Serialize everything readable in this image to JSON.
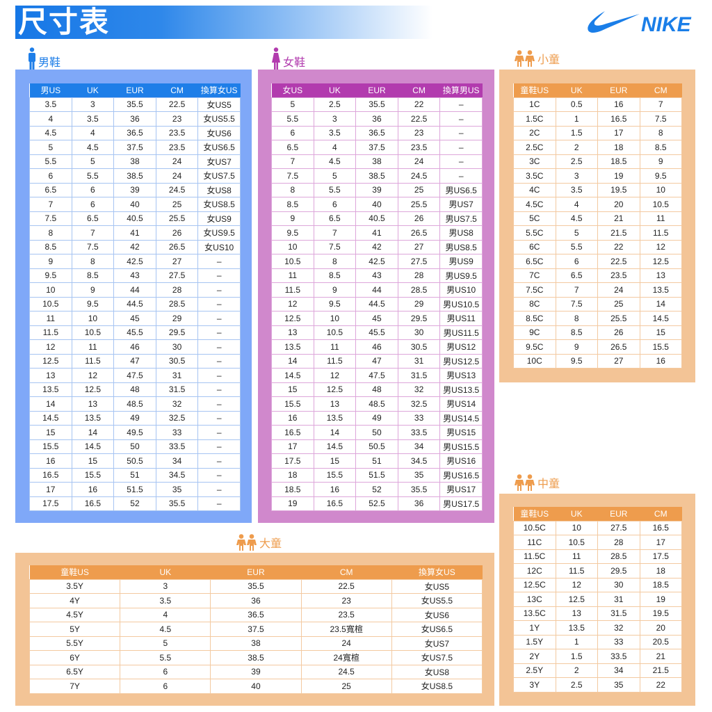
{
  "title": "尺寸表",
  "logo": "NIKE",
  "colors": {
    "men": "#1e7ee8",
    "women": "#b23bae",
    "kids": "#ee9c4d"
  },
  "men": {
    "label": "男鞋",
    "icon": "man-icon",
    "headers": [
      "男US",
      "UK",
      "EUR",
      "CM",
      "換算女US"
    ],
    "rows": [
      [
        "3.5",
        "3",
        "35.5",
        "22.5",
        "女US5"
      ],
      [
        "4",
        "3.5",
        "36",
        "23",
        "女US5.5"
      ],
      [
        "4.5",
        "4",
        "36.5",
        "23.5",
        "女US6"
      ],
      [
        "5",
        "4.5",
        "37.5",
        "23.5",
        "女US6.5"
      ],
      [
        "5.5",
        "5",
        "38",
        "24",
        "女US7"
      ],
      [
        "6",
        "5.5",
        "38.5",
        "24",
        "女US7.5"
      ],
      [
        "6.5",
        "6",
        "39",
        "24.5",
        "女US8"
      ],
      [
        "7",
        "6",
        "40",
        "25",
        "女US8.5"
      ],
      [
        "7.5",
        "6.5",
        "40.5",
        "25.5",
        "女US9"
      ],
      [
        "8",
        "7",
        "41",
        "26",
        "女US9.5"
      ],
      [
        "8.5",
        "7.5",
        "42",
        "26.5",
        "女US10"
      ],
      [
        "9",
        "8",
        "42.5",
        "27",
        "–"
      ],
      [
        "9.5",
        "8.5",
        "43",
        "27.5",
        "–"
      ],
      [
        "10",
        "9",
        "44",
        "28",
        "–"
      ],
      [
        "10.5",
        "9.5",
        "44.5",
        "28.5",
        "–"
      ],
      [
        "11",
        "10",
        "45",
        "29",
        "–"
      ],
      [
        "11.5",
        "10.5",
        "45.5",
        "29.5",
        "–"
      ],
      [
        "12",
        "11",
        "46",
        "30",
        "–"
      ],
      [
        "12.5",
        "11.5",
        "47",
        "30.5",
        "–"
      ],
      [
        "13",
        "12",
        "47.5",
        "31",
        "–"
      ],
      [
        "13.5",
        "12.5",
        "48",
        "31.5",
        "–"
      ],
      [
        "14",
        "13",
        "48.5",
        "32",
        "–"
      ],
      [
        "14.5",
        "13.5",
        "49",
        "32.5",
        "–"
      ],
      [
        "15",
        "14",
        "49.5",
        "33",
        "–"
      ],
      [
        "15.5",
        "14.5",
        "50",
        "33.5",
        "–"
      ],
      [
        "16",
        "15",
        "50.5",
        "34",
        "–"
      ],
      [
        "16.5",
        "15.5",
        "51",
        "34.5",
        "–"
      ],
      [
        "17",
        "16",
        "51.5",
        "35",
        "–"
      ],
      [
        "17.5",
        "16.5",
        "52",
        "35.5",
        "–"
      ]
    ]
  },
  "women": {
    "label": "女鞋",
    "icon": "woman-icon",
    "headers": [
      "女US",
      "UK",
      "EUR",
      "CM",
      "換算男US"
    ],
    "rows": [
      [
        "5",
        "2.5",
        "35.5",
        "22",
        "–"
      ],
      [
        "5.5",
        "3",
        "36",
        "22.5",
        "–"
      ],
      [
        "6",
        "3.5",
        "36.5",
        "23",
        "–"
      ],
      [
        "6.5",
        "4",
        "37.5",
        "23.5",
        "–"
      ],
      [
        "7",
        "4.5",
        "38",
        "24",
        "–"
      ],
      [
        "7.5",
        "5",
        "38.5",
        "24.5",
        "–"
      ],
      [
        "8",
        "5.5",
        "39",
        "25",
        "男US6.5"
      ],
      [
        "8.5",
        "6",
        "40",
        "25.5",
        "男US7"
      ],
      [
        "9",
        "6.5",
        "40.5",
        "26",
        "男US7.5"
      ],
      [
        "9.5",
        "7",
        "41",
        "26.5",
        "男US8"
      ],
      [
        "10",
        "7.5",
        "42",
        "27",
        "男US8.5"
      ],
      [
        "10.5",
        "8",
        "42.5",
        "27.5",
        "男US9"
      ],
      [
        "11",
        "8.5",
        "43",
        "28",
        "男US9.5"
      ],
      [
        "11.5",
        "9",
        "44",
        "28.5",
        "男US10"
      ],
      [
        "12",
        "9.5",
        "44.5",
        "29",
        "男US10.5"
      ],
      [
        "12.5",
        "10",
        "45",
        "29.5",
        "男US11"
      ],
      [
        "13",
        "10.5",
        "45.5",
        "30",
        "男US11.5"
      ],
      [
        "13.5",
        "11",
        "46",
        "30.5",
        "男US12"
      ],
      [
        "14",
        "11.5",
        "47",
        "31",
        "男US12.5"
      ],
      [
        "14.5",
        "12",
        "47.5",
        "31.5",
        "男US13"
      ],
      [
        "15",
        "12.5",
        "48",
        "32",
        "男US13.5"
      ],
      [
        "15.5",
        "13",
        "48.5",
        "32.5",
        "男US14"
      ],
      [
        "16",
        "13.5",
        "49",
        "33",
        "男US14.5"
      ],
      [
        "16.5",
        "14",
        "50",
        "33.5",
        "男US15"
      ],
      [
        "17",
        "14.5",
        "50.5",
        "34",
        "男US15.5"
      ],
      [
        "17.5",
        "15",
        "51",
        "34.5",
        "男US16"
      ],
      [
        "18",
        "15.5",
        "51.5",
        "35",
        "男US16.5"
      ],
      [
        "18.5",
        "16",
        "52",
        "35.5",
        "男US17"
      ],
      [
        "19",
        "16.5",
        "52.5",
        "36",
        "男US17.5"
      ]
    ]
  },
  "small_kids": {
    "label": "小童",
    "icon": "kids-icon",
    "headers": [
      "童鞋US",
      "UK",
      "EUR",
      "CM"
    ],
    "rows": [
      [
        "1C",
        "0.5",
        "16",
        "7"
      ],
      [
        "1.5C",
        "1",
        "16.5",
        "7.5"
      ],
      [
        "2C",
        "1.5",
        "17",
        "8"
      ],
      [
        "2.5C",
        "2",
        "18",
        "8.5"
      ],
      [
        "3C",
        "2.5",
        "18.5",
        "9"
      ],
      [
        "3.5C",
        "3",
        "19",
        "9.5"
      ],
      [
        "4C",
        "3.5",
        "19.5",
        "10"
      ],
      [
        "4.5C",
        "4",
        "20",
        "10.5"
      ],
      [
        "5C",
        "4.5",
        "21",
        "11"
      ],
      [
        "5.5C",
        "5",
        "21.5",
        "11.5"
      ],
      [
        "6C",
        "5.5",
        "22",
        "12"
      ],
      [
        "6.5C",
        "6",
        "22.5",
        "12.5"
      ],
      [
        "7C",
        "6.5",
        "23.5",
        "13"
      ],
      [
        "7.5C",
        "7",
        "24",
        "13.5"
      ],
      [
        "8C",
        "7.5",
        "25",
        "14"
      ],
      [
        "8.5C",
        "8",
        "25.5",
        "14.5"
      ],
      [
        "9C",
        "8.5",
        "26",
        "15"
      ],
      [
        "9.5C",
        "9",
        "26.5",
        "15.5"
      ],
      [
        "10C",
        "9.5",
        "27",
        "16"
      ]
    ]
  },
  "mid_kids": {
    "label": "中童",
    "icon": "kids-icon",
    "headers": [
      "童鞋US",
      "UK",
      "EUR",
      "CM"
    ],
    "rows": [
      [
        "10.5C",
        "10",
        "27.5",
        "16.5"
      ],
      [
        "11C",
        "10.5",
        "28",
        "17"
      ],
      [
        "11.5C",
        "11",
        "28.5",
        "17.5"
      ],
      [
        "12C",
        "11.5",
        "29.5",
        "18"
      ],
      [
        "12.5C",
        "12",
        "30",
        "18.5"
      ],
      [
        "13C",
        "12.5",
        "31",
        "19"
      ],
      [
        "13.5C",
        "13",
        "31.5",
        "19.5"
      ],
      [
        "1Y",
        "13.5",
        "32",
        "20"
      ],
      [
        "1.5Y",
        "1",
        "33",
        "20.5"
      ],
      [
        "2Y",
        "1.5",
        "33.5",
        "21"
      ],
      [
        "2.5Y",
        "2",
        "34",
        "21.5"
      ],
      [
        "3Y",
        "2.5",
        "35",
        "22"
      ]
    ]
  },
  "big_kids": {
    "label": "大童",
    "icon": "kids-icon",
    "headers": [
      "童鞋US",
      "UK",
      "EUR",
      "CM",
      "換算女US"
    ],
    "rows": [
      [
        "3.5Y",
        "3",
        "35.5",
        "22.5",
        "女US5"
      ],
      [
        "4Y",
        "3.5",
        "36",
        "23",
        "女US5.5"
      ],
      [
        "4.5Y",
        "4",
        "36.5",
        "23.5",
        "女US6"
      ],
      [
        "5Y",
        "4.5",
        "37.5",
        "23.5寬楦",
        "女US6.5"
      ],
      [
        "5.5Y",
        "5",
        "38",
        "24",
        "女US7"
      ],
      [
        "6Y",
        "5.5",
        "38.5",
        "24寬楦",
        "女US7.5"
      ],
      [
        "6.5Y",
        "6",
        "39",
        "24.5",
        "女US8"
      ],
      [
        "7Y",
        "6",
        "40",
        "25",
        "女US8.5"
      ]
    ]
  }
}
